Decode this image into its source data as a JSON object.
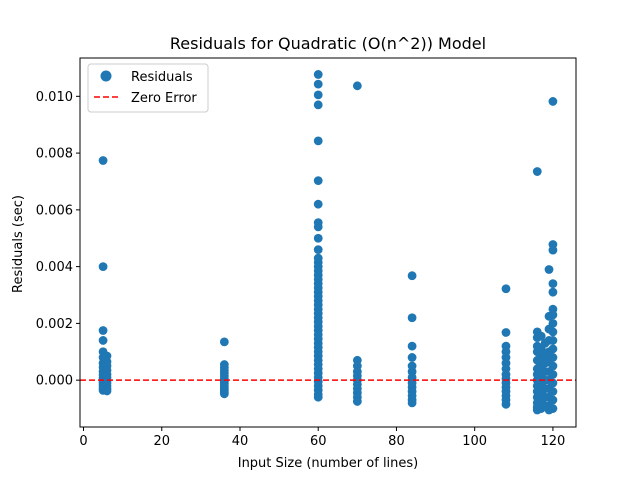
{
  "chart_data": {
    "type": "scatter",
    "title": "Residuals for Quadratic (O(n^2)) Model",
    "xlabel": "Input Size (number of lines)",
    "ylabel": "Residuals (sec)",
    "xlim": [
      -0.9,
      125.9
    ],
    "ylim": [
      -0.00165,
      0.01135
    ],
    "xticks": [
      0,
      20,
      40,
      60,
      80,
      100,
      120
    ],
    "xtick_labels": [
      "0",
      "20",
      "40",
      "60",
      "80",
      "100",
      "120"
    ],
    "yticks": [
      0.0,
      0.002,
      0.004,
      0.006,
      0.008,
      0.01
    ],
    "ytick_labels": [
      "0.000",
      "0.002",
      "0.004",
      "0.006",
      "0.008",
      "0.010"
    ],
    "grid": false,
    "legend_position": "top-left",
    "series": [
      {
        "name": "Residuals",
        "kind": "scatter",
        "color": "#1f77b4",
        "points": [
          [
            5,
            0.00774
          ],
          [
            5,
            0.004
          ],
          [
            5,
            0.00175
          ],
          [
            5,
            0.0014
          ],
          [
            5,
            0.001
          ],
          [
            5,
            0.0008
          ],
          [
            5,
            0.0006
          ],
          [
            5,
            0.00045
          ],
          [
            5,
            0.0003
          ],
          [
            5,
            0.00018
          ],
          [
            5,
            8e-05
          ],
          [
            5,
            0.0
          ],
          [
            5,
            -8e-05
          ],
          [
            5,
            -0.00015
          ],
          [
            5,
            -0.00022
          ],
          [
            5,
            -0.0003
          ],
          [
            5,
            -0.00036
          ],
          [
            6,
            0.00085
          ],
          [
            6,
            0.00065
          ],
          [
            6,
            0.0005
          ],
          [
            6,
            0.00035
          ],
          [
            6,
            0.0002
          ],
          [
            6,
            0.0001
          ],
          [
            6,
            0.0
          ],
          [
            6,
            -0.0001
          ],
          [
            6,
            -0.0002
          ],
          [
            6,
            -0.0003
          ],
          [
            6,
            -0.00038
          ],
          [
            36,
            0.00135
          ],
          [
            36,
            0.00055
          ],
          [
            36,
            0.00045
          ],
          [
            36,
            0.00035
          ],
          [
            36,
            0.00025
          ],
          [
            36,
            0.00015
          ],
          [
            36,
            5e-05
          ],
          [
            36,
            -5e-05
          ],
          [
            36,
            -0.00012
          ],
          [
            36,
            -0.0002
          ],
          [
            36,
            -0.00028
          ],
          [
            36,
            -0.00035
          ],
          [
            36,
            -0.00042
          ],
          [
            36,
            -0.00048
          ],
          [
            60,
            0.01077
          ],
          [
            60,
            0.01043
          ],
          [
            60,
            0.01005
          ],
          [
            60,
            0.0097
          ],
          [
            60,
            0.00843
          ],
          [
            60,
            0.00703
          ],
          [
            60,
            0.0062
          ],
          [
            60,
            0.00555
          ],
          [
            60,
            0.0054
          ],
          [
            60,
            0.005
          ],
          [
            60,
            0.0046
          ],
          [
            60,
            0.0043
          ],
          [
            60,
            0.00415
          ],
          [
            60,
            0.004
          ],
          [
            60,
            0.00385
          ],
          [
            60,
            0.0037
          ],
          [
            60,
            0.00355
          ],
          [
            60,
            0.0034
          ],
          [
            60,
            0.00325
          ],
          [
            60,
            0.0031
          ],
          [
            60,
            0.00295
          ],
          [
            60,
            0.0028
          ],
          [
            60,
            0.00265
          ],
          [
            60,
            0.0025
          ],
          [
            60,
            0.00235
          ],
          [
            60,
            0.0022
          ],
          [
            60,
            0.00205
          ],
          [
            60,
            0.0019
          ],
          [
            60,
            0.00175
          ],
          [
            60,
            0.0016
          ],
          [
            60,
            0.00145
          ],
          [
            60,
            0.0013
          ],
          [
            60,
            0.00115
          ],
          [
            60,
            0.001
          ],
          [
            60,
            0.00085
          ],
          [
            60,
            0.0007
          ],
          [
            60,
            0.00055
          ],
          [
            60,
            0.0004
          ],
          [
            60,
            0.00025
          ],
          [
            60,
            0.0001
          ],
          [
            60,
            -5e-05
          ],
          [
            60,
            -0.0002
          ],
          [
            60,
            -0.00035
          ],
          [
            60,
            -0.0005
          ],
          [
            60,
            -0.0006
          ],
          [
            70,
            0.01037
          ],
          [
            70,
            0.0007
          ],
          [
            70,
            0.0005
          ],
          [
            70,
            0.0003
          ],
          [
            70,
            0.00015
          ],
          [
            70,
            0.0
          ],
          [
            70,
            -0.00015
          ],
          [
            70,
            -0.0003
          ],
          [
            70,
            -0.00045
          ],
          [
            70,
            -0.0006
          ],
          [
            70,
            -0.00075
          ],
          [
            84,
            0.00368
          ],
          [
            84,
            0.0022
          ],
          [
            84,
            0.0012
          ],
          [
            84,
            0.0008
          ],
          [
            84,
            0.0005
          ],
          [
            84,
            0.0003
          ],
          [
            84,
            0.0001
          ],
          [
            84,
            -0.0001
          ],
          [
            84,
            -0.00025
          ],
          [
            84,
            -0.0004
          ],
          [
            84,
            -0.00055
          ],
          [
            84,
            -0.0007
          ],
          [
            84,
            -0.0008
          ],
          [
            108,
            0.00322
          ],
          [
            108,
            0.00168
          ],
          [
            108,
            0.0012
          ],
          [
            108,
            0.001
          ],
          [
            108,
            0.0008
          ],
          [
            108,
            0.0006
          ],
          [
            108,
            0.0004
          ],
          [
            108,
            0.0002
          ],
          [
            108,
            5e-05
          ],
          [
            108,
            -0.0001
          ],
          [
            108,
            -0.00025
          ],
          [
            108,
            -0.0004
          ],
          [
            108,
            -0.00055
          ],
          [
            108,
            -0.0007
          ],
          [
            108,
            -0.00085
          ],
          [
            116,
            0.00735
          ],
          [
            116,
            0.0017
          ],
          [
            116,
            0.0015
          ],
          [
            116,
            0.0012
          ],
          [
            116,
            0.001
          ],
          [
            116,
            0.0007
          ],
          [
            116,
            0.0004
          ],
          [
            116,
            0.0002
          ],
          [
            116,
            0.0
          ],
          [
            116,
            -0.0002
          ],
          [
            116,
            -0.0004
          ],
          [
            116,
            -0.0006
          ],
          [
            116,
            -0.0008
          ],
          [
            116,
            -0.00095
          ],
          [
            116,
            -0.00105
          ],
          [
            117,
            0.00155
          ],
          [
            117,
            0.0011
          ],
          [
            117,
            0.0008
          ],
          [
            117,
            0.0005
          ],
          [
            117,
            0.00025
          ],
          [
            117,
            0.0
          ],
          [
            117,
            -0.00025
          ],
          [
            117,
            -0.0005
          ],
          [
            117,
            -0.00075
          ],
          [
            117,
            -0.001
          ],
          [
            119,
            0.0039
          ],
          [
            119,
            0.00225
          ],
          [
            119,
            0.0018
          ],
          [
            119,
            0.0014
          ],
          [
            119,
            0.001
          ],
          [
            119,
            0.00065
          ],
          [
            119,
            0.0003
          ],
          [
            119,
            0.0
          ],
          [
            119,
            -0.0003
          ],
          [
            119,
            -0.0006
          ],
          [
            119,
            -0.0009
          ],
          [
            119,
            -0.00105
          ],
          [
            120,
            0.00982
          ],
          [
            120,
            0.00478
          ],
          [
            120,
            0.00458
          ],
          [
            120,
            0.0034
          ],
          [
            120,
            0.0031
          ],
          [
            120,
            0.0025
          ],
          [
            120,
            0.0023
          ],
          [
            120,
            0.002
          ],
          [
            120,
            0.0017
          ],
          [
            120,
            0.0014
          ],
          [
            120,
            0.0011
          ],
          [
            120,
            0.0008
          ],
          [
            120,
            0.0005
          ],
          [
            120,
            0.0002
          ],
          [
            120,
            -0.0001
          ],
          [
            120,
            -0.0004
          ],
          [
            120,
            -0.0007
          ],
          [
            120,
            -0.001
          ],
          [
            118,
            0.0013
          ],
          [
            118,
            0.0009
          ],
          [
            118,
            0.0006
          ],
          [
            118,
            0.0003
          ],
          [
            118,
            0.0
          ],
          [
            118,
            -0.0003
          ],
          [
            118,
            -0.0006
          ],
          [
            118,
            -0.0009
          ]
        ]
      },
      {
        "name": "Zero Error",
        "kind": "hline",
        "y": 0.0,
        "color": "#ff0000",
        "linestyle": "dashed"
      }
    ]
  }
}
